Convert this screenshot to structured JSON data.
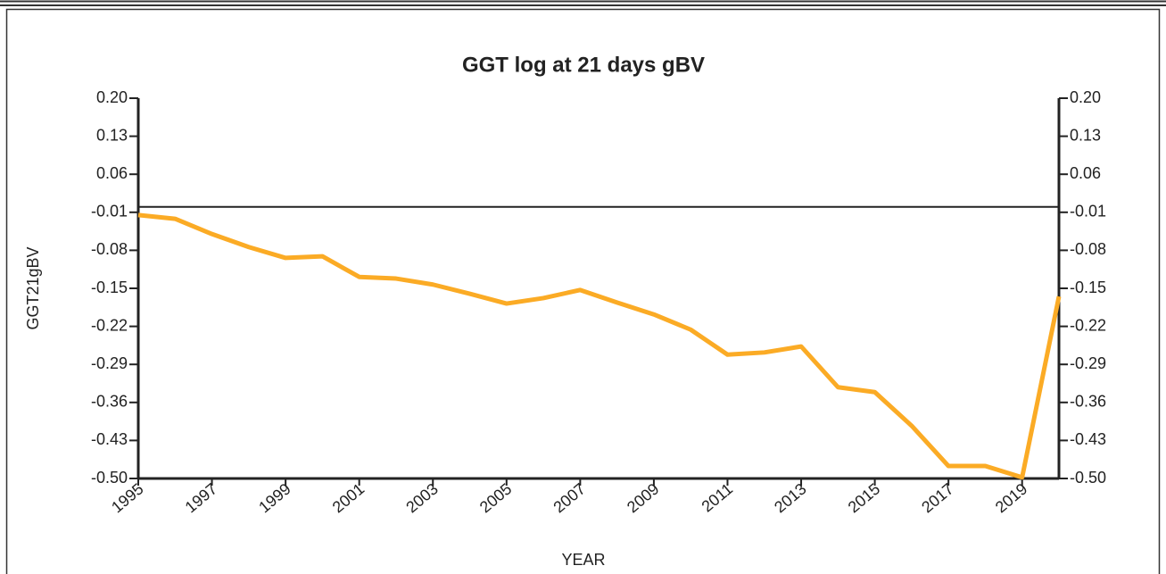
{
  "chart_data": {
    "type": "line",
    "title": "GGT log at 21 days gBV",
    "y_label": "GGT21gBV",
    "x_label": "YEAR",
    "x": [
      1995,
      1996,
      1997,
      1998,
      1999,
      2000,
      2001,
      2002,
      2003,
      2004,
      2005,
      2006,
      2007,
      2008,
      2009,
      2010,
      2011,
      2012,
      2013,
      2014,
      2015,
      2016,
      2017,
      2018,
      2019,
      2020
    ],
    "series": [
      {
        "name": "GGT21gBV",
        "color": "#fbab25",
        "values": [
          -0.015,
          -0.022,
          -0.05,
          -0.074,
          -0.094,
          -0.091,
          -0.129,
          -0.132,
          -0.143,
          -0.16,
          -0.178,
          -0.168,
          -0.153,
          -0.176,
          -0.198,
          -0.226,
          -0.272,
          -0.268,
          -0.257,
          -0.332,
          -0.341,
          -0.403,
          -0.477,
          -0.477,
          -0.498,
          -0.165
        ]
      }
    ],
    "xlim": [
      1995,
      2020
    ],
    "xticks": [
      1995,
      1997,
      1999,
      2001,
      2003,
      2005,
      2007,
      2009,
      2011,
      2013,
      2015,
      2017,
      2019
    ],
    "ylim": [
      -0.5,
      0.2
    ],
    "yticks": [
      {
        "value": 0.2,
        "label": "0.20"
      },
      0.13,
      0.06,
      -0.01,
      -0.08,
      -0.15,
      -0.22,
      -0.29,
      -0.36,
      -0.43,
      {
        "value": -0.5,
        "label": "-0.50"
      }
    ],
    "y2lim": [
      -0.5,
      0.2
    ],
    "y2ticks": [
      {
        "value": 0.2,
        "label": "0.20"
      },
      0.13,
      0.06,
      -0.01,
      -0.08,
      -0.15,
      -0.22,
      -0.29,
      -0.36,
      -0.43,
      {
        "value": -0.5,
        "label": "-0.50"
      }
    ],
    "reference_line": 0
  }
}
